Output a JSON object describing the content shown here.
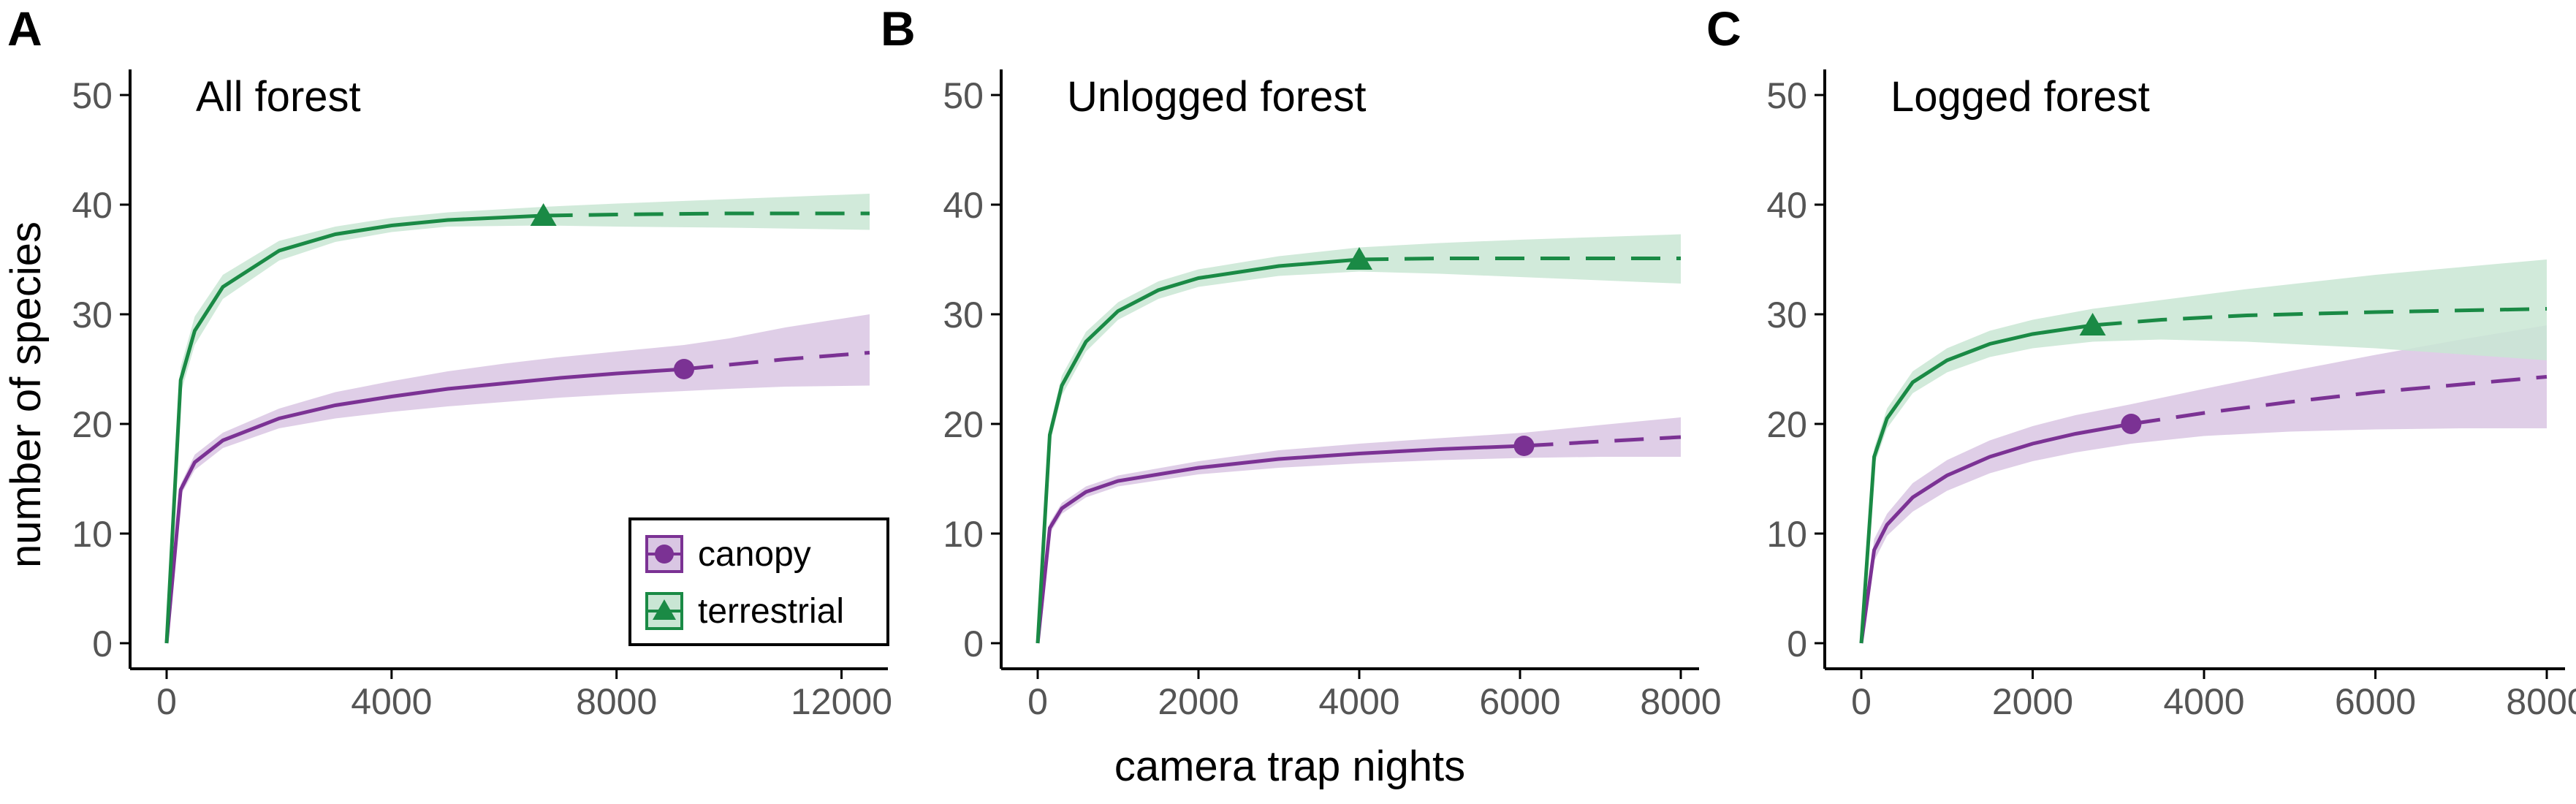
{
  "figure": {
    "ylabel": "number of species",
    "xlabel": "camera trap nights"
  },
  "legend": {
    "items": [
      {
        "label": "canopy",
        "marker": "circle",
        "color": "#7b3294"
      },
      {
        "label": "terrestrial",
        "marker": "triangle",
        "color": "#1a8a45"
      }
    ]
  },
  "colors": {
    "canopy": "#7b3294",
    "canopy_band": "#d9c6e3",
    "terrestrial": "#1a8a45",
    "terrestrial_band": "#c9e6d4",
    "axis": "#000000",
    "tick_label": "#555555"
  },
  "chart_data": [
    {
      "type": "line",
      "panel_letter": "A",
      "title": "All forest",
      "xlim": [
        0,
        12500
      ],
      "ylim": [
        0,
        50
      ],
      "x_ticks": [
        0,
        4000,
        8000,
        12000
      ],
      "y_ticks": [
        0,
        10,
        20,
        30,
        40,
        50
      ],
      "grid": false,
      "legend_position": "bottom-right",
      "series": [
        {
          "name": "canopy",
          "marker": "circle",
          "observed_end": [
            9200,
            25
          ],
          "extrapolated_end": [
            12500,
            26.5
          ],
          "x": [
            0,
            250,
            500,
            1000,
            2000,
            3000,
            4000,
            5000,
            6000,
            7000,
            8000,
            9200,
            10000,
            11000,
            12500
          ],
          "y": [
            0,
            14,
            16.5,
            18.5,
            20.5,
            21.7,
            22.5,
            23.2,
            23.7,
            24.2,
            24.6,
            25,
            25.4,
            25.9,
            26.5
          ],
          "lower": [
            0,
            13.5,
            15.8,
            17.8,
            19.6,
            20.5,
            21.1,
            21.6,
            22.0,
            22.4,
            22.7,
            23.0,
            23.2,
            23.4,
            23.5
          ],
          "upper": [
            0,
            14.5,
            17.2,
            19.2,
            21.4,
            22.9,
            23.9,
            24.8,
            25.5,
            26.1,
            26.6,
            27.2,
            27.8,
            28.8,
            30.0
          ]
        },
        {
          "name": "terrestrial",
          "marker": "triangle",
          "observed_end": [
            6700,
            39
          ],
          "extrapolated_end": [
            12500,
            39.2
          ],
          "x": [
            0,
            250,
            500,
            1000,
            2000,
            3000,
            4000,
            5000,
            6700,
            8000,
            10000,
            12500
          ],
          "y": [
            0,
            24,
            28.5,
            32.5,
            35.8,
            37.3,
            38.1,
            38.6,
            39,
            39.1,
            39.2,
            39.2
          ],
          "lower": [
            0,
            22.8,
            27.2,
            31.4,
            34.9,
            36.6,
            37.5,
            38.0,
            38.1,
            38.0,
            37.9,
            37.7
          ],
          "upper": [
            0,
            25.2,
            29.8,
            33.6,
            36.7,
            38.0,
            38.8,
            39.3,
            39.8,
            40.1,
            40.5,
            41.0
          ]
        }
      ]
    },
    {
      "type": "line",
      "panel_letter": "B",
      "title": "Unlogged forest",
      "xlim": [
        0,
        8000
      ],
      "ylim": [
        0,
        50
      ],
      "x_ticks": [
        0,
        2000,
        4000,
        6000,
        8000
      ],
      "y_ticks": [
        0,
        10,
        20,
        30,
        40,
        50
      ],
      "grid": false,
      "series": [
        {
          "name": "canopy",
          "marker": "circle",
          "observed_end": [
            6050,
            18
          ],
          "extrapolated_end": [
            8000,
            18.8
          ],
          "x": [
            0,
            150,
            300,
            600,
            1000,
            2000,
            3000,
            4000,
            5000,
            6050,
            7000,
            8000
          ],
          "y": [
            0,
            10.5,
            12.3,
            13.8,
            14.8,
            16.0,
            16.8,
            17.3,
            17.7,
            18,
            18.4,
            18.8
          ],
          "lower": [
            0,
            10.0,
            11.8,
            13.3,
            14.3,
            15.4,
            16.0,
            16.4,
            16.7,
            16.9,
            17.0,
            17.0
          ],
          "upper": [
            0,
            11.0,
            12.8,
            14.3,
            15.3,
            16.6,
            17.6,
            18.2,
            18.7,
            19.2,
            19.9,
            20.6
          ]
        },
        {
          "name": "terrestrial",
          "marker": "triangle",
          "observed_end": [
            4000,
            35
          ],
          "extrapolated_end": [
            8000,
            35.1
          ],
          "x": [
            0,
            150,
            300,
            600,
            1000,
            1500,
            2000,
            3000,
            4000,
            5000,
            6000,
            8000
          ],
          "y": [
            0,
            19,
            23.5,
            27.5,
            30.3,
            32.2,
            33.3,
            34.4,
            35,
            35.1,
            35.1,
            35.1
          ],
          "lower": [
            0,
            18.2,
            22.6,
            26.6,
            29.5,
            31.4,
            32.5,
            33.5,
            33.9,
            33.7,
            33.4,
            32.8
          ],
          "upper": [
            0,
            19.8,
            24.4,
            28.4,
            31.1,
            33.0,
            34.1,
            35.3,
            36.1,
            36.5,
            36.8,
            37.3
          ]
        }
      ]
    },
    {
      "type": "line",
      "panel_letter": "C",
      "title": "Logged forest",
      "xlim": [
        0,
        8000
      ],
      "ylim": [
        0,
        50
      ],
      "x_ticks": [
        0,
        2000,
        4000,
        6000,
        8000
      ],
      "y_ticks": [
        0,
        10,
        20,
        30,
        40,
        50
      ],
      "grid": false,
      "series": [
        {
          "name": "canopy",
          "marker": "circle",
          "observed_end": [
            3150,
            20
          ],
          "extrapolated_end": [
            8000,
            24.3
          ],
          "x": [
            0,
            150,
            300,
            600,
            1000,
            1500,
            2000,
            2500,
            3150,
            4000,
            5000,
            6000,
            7000,
            8000
          ],
          "y": [
            0,
            8.5,
            10.8,
            13.3,
            15.3,
            17.0,
            18.2,
            19.1,
            20,
            21.0,
            22.0,
            22.9,
            23.6,
            24.3
          ],
          "lower": [
            0,
            7.5,
            9.8,
            12.0,
            13.9,
            15.5,
            16.6,
            17.4,
            18.2,
            18.9,
            19.3,
            19.5,
            19.6,
            19.6
          ],
          "upper": [
            0,
            9.5,
            11.8,
            14.6,
            16.7,
            18.5,
            19.8,
            20.8,
            21.8,
            23.2,
            24.8,
            26.3,
            27.7,
            29.0
          ]
        },
        {
          "name": "terrestrial",
          "marker": "triangle",
          "observed_end": [
            2700,
            29
          ],
          "extrapolated_end": [
            8000,
            30.5
          ],
          "x": [
            0,
            150,
            300,
            600,
            1000,
            1500,
            2000,
            2700,
            3500,
            4500,
            6000,
            8000
          ],
          "y": [
            0,
            17,
            20.5,
            23.8,
            25.8,
            27.3,
            28.2,
            29,
            29.5,
            29.9,
            30.2,
            30.5
          ],
          "lower": [
            0,
            16.2,
            19.6,
            22.8,
            24.7,
            26.1,
            26.9,
            27.5,
            27.7,
            27.5,
            26.9,
            25.8
          ],
          "upper": [
            0,
            17.8,
            21.4,
            24.8,
            26.9,
            28.5,
            29.5,
            30.5,
            31.3,
            32.3,
            33.6,
            35.0
          ]
        }
      ]
    }
  ]
}
